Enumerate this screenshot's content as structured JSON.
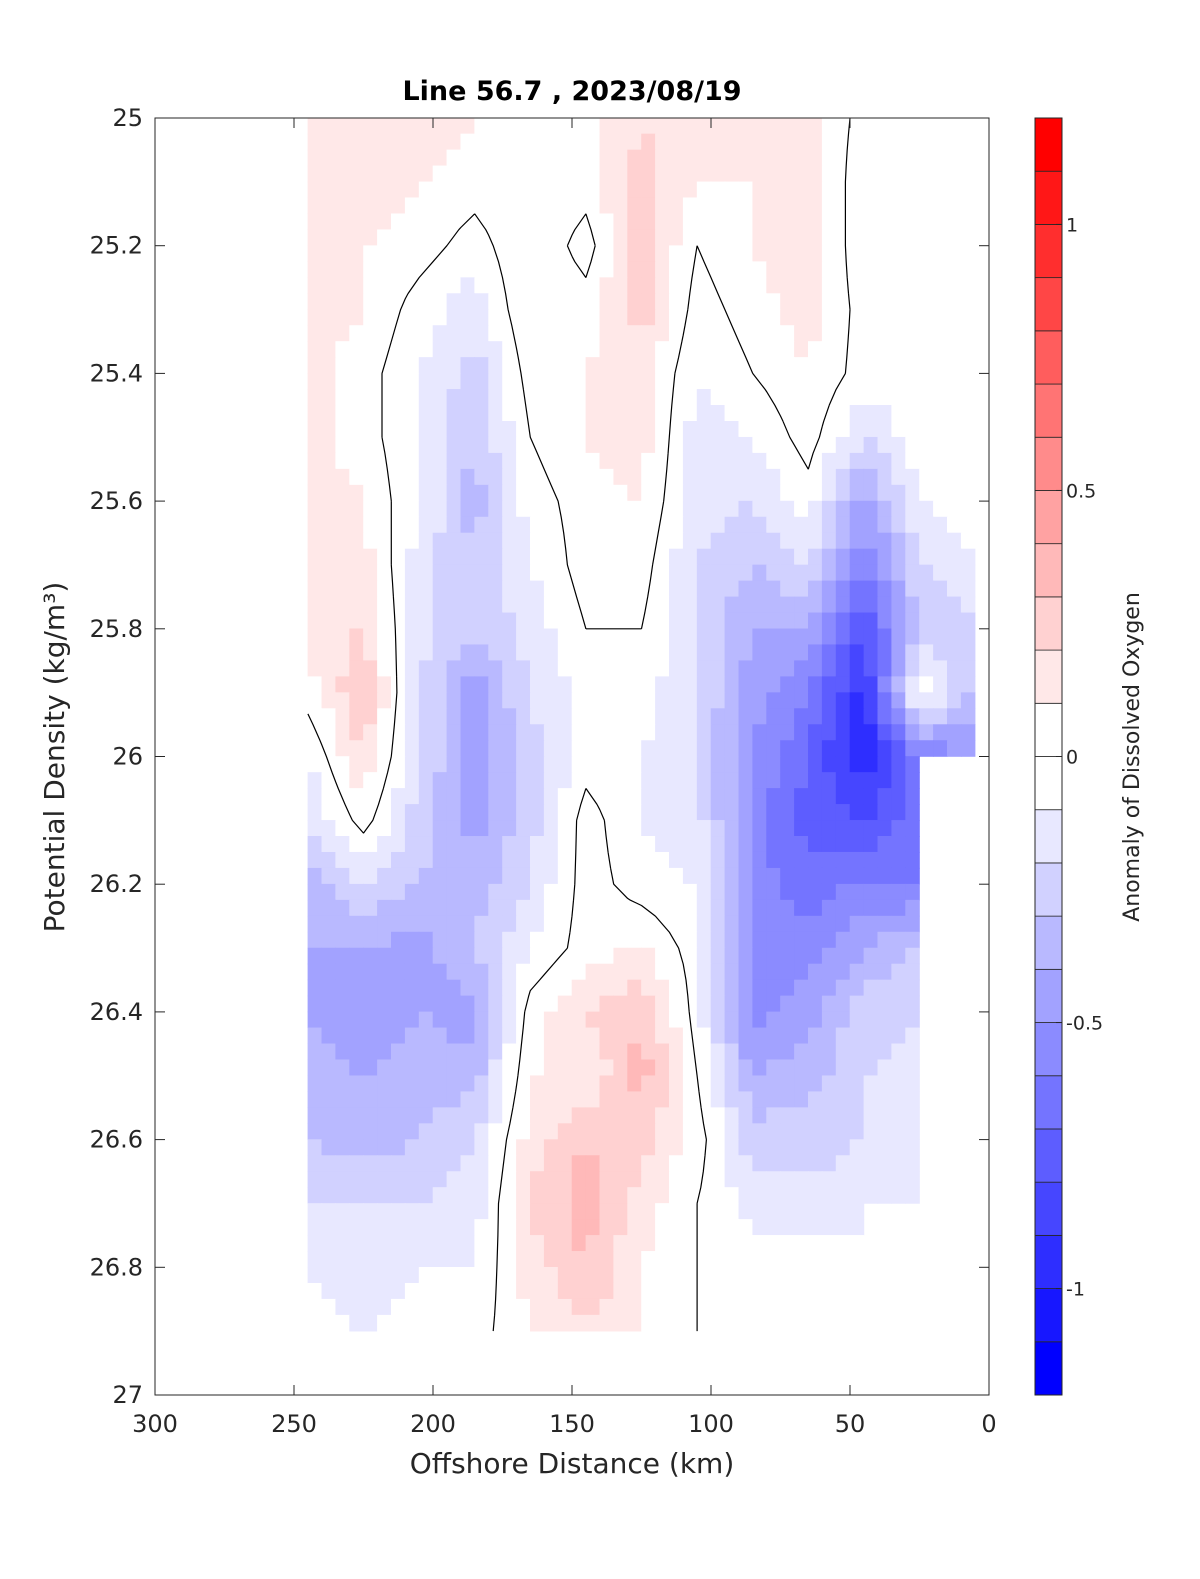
{
  "chart_data": {
    "type": "heatmap",
    "subtype": "filled-contour",
    "title": "Line 56.7 , 2023/08/19",
    "xlabel": "Offshore Distance (km)",
    "ylabel": "Potential Density (kg/m³)",
    "colorbar_label": "Anomaly of Dissolved Oxygen",
    "xlim": [
      300,
      0
    ],
    "ylim": [
      27,
      25
    ],
    "x_reversed": true,
    "y_reversed": true,
    "x_ticks": [
      "300",
      "250",
      "200",
      "150",
      "100",
      "50",
      "0"
    ],
    "y_ticks": [
      "25",
      "25.2",
      "25.4",
      "25.6",
      "25.8",
      "26",
      "26.2",
      "26.4",
      "26.6",
      "26.8",
      "27"
    ],
    "colorbar_range": [
      -1.2,
      1.2
    ],
    "colorbar_step": 0.1,
    "colorbar_ticks": [
      "1",
      "0.5",
      "0",
      "-0.5",
      "-1"
    ],
    "colormap": {
      "negative": "#0000ff",
      "zero": "#ffffff",
      "positive": "#ff0000"
    },
    "contour_level": 0,
    "grid": false,
    "x": [
      245,
      225,
      205,
      185,
      165,
      145,
      125,
      105,
      85,
      65,
      45,
      25,
      5
    ],
    "y": [
      25.0,
      25.1,
      25.2,
      25.3,
      25.4,
      25.5,
      25.6,
      25.7,
      25.8,
      25.9,
      26.0,
      26.1,
      26.2,
      26.3,
      26.4,
      26.5,
      26.6,
      26.7,
      26.8,
      26.9
    ],
    "z": [
      [
        0.2,
        0.2,
        0.15,
        0.1,
        0.1,
        0.05,
        0.2,
        0.1,
        0.1,
        0.15,
        -0.05,
        0,
        0
      ],
      [
        0.2,
        0.15,
        0.1,
        0.05,
        0.1,
        0.05,
        0.25,
        0.1,
        0.1,
        0.2,
        -0.1,
        0,
        0
      ],
      [
        0.2,
        0.1,
        0.05,
        -0.05,
        0.1,
        -0.05,
        0.25,
        0.0,
        0.1,
        0.2,
        -0.1,
        0,
        0
      ],
      [
        0.15,
        0.1,
        -0.05,
        -0.15,
        0.1,
        0.05,
        0.25,
        -0.05,
        0.05,
        0.15,
        -0.05,
        0,
        0
      ],
      [
        0.15,
        0.05,
        -0.1,
        -0.25,
        0.05,
        0.1,
        0.15,
        -0.1,
        0.0,
        0.1,
        -0.05,
        0,
        0
      ],
      [
        0.15,
        0.05,
        -0.1,
        -0.3,
        0.0,
        0.1,
        0.15,
        -0.15,
        -0.1,
        0.05,
        -0.2,
        -0.05,
        0
      ],
      [
        0.15,
        0.1,
        -0.1,
        -0.35,
        -0.05,
        0.05,
        0.1,
        -0.15,
        -0.2,
        -0.05,
        -0.45,
        -0.1,
        -0.05
      ],
      [
        0.15,
        0.15,
        -0.15,
        -0.3,
        -0.1,
        0.05,
        0.05,
        -0.2,
        -0.3,
        -0.2,
        -0.6,
        -0.2,
        -0.1
      ],
      [
        0.15,
        0.2,
        -0.15,
        -0.3,
        -0.15,
        0.0,
        0.0,
        -0.2,
        -0.4,
        -0.4,
        -0.8,
        -0.3,
        -0.2
      ],
      [
        0.05,
        0.3,
        -0.2,
        -0.45,
        -0.2,
        -0.05,
        -0.05,
        -0.2,
        -0.45,
        -0.6,
        -0.95,
        0.0,
        -0.35
      ],
      [
        -0.1,
        0.2,
        -0.2,
        -0.45,
        -0.25,
        -0.05,
        -0.1,
        -0.2,
        -0.5,
        -0.7,
        -1.0,
        -0.6,
        -0.5
      ],
      [
        -0.2,
        0.05,
        -0.25,
        -0.45,
        -0.25,
        0.05,
        -0.1,
        -0.15,
        -0.55,
        -0.75,
        -0.8,
        -0.65,
        null
      ],
      [
        -0.35,
        -0.2,
        -0.3,
        -0.35,
        -0.2,
        0.05,
        -0.05,
        -0.1,
        -0.55,
        -0.65,
        -0.6,
        -0.6,
        null
      ],
      [
        -0.4,
        -0.4,
        -0.45,
        -0.3,
        -0.1,
        0.05,
        0.1,
        -0.05,
        -0.55,
        -0.55,
        -0.4,
        -0.3,
        null
      ],
      [
        -0.4,
        -0.5,
        -0.4,
        -0.45,
        0.05,
        0.2,
        0.3,
        -0.05,
        -0.55,
        -0.45,
        -0.25,
        -0.2,
        null
      ],
      [
        -0.35,
        -0.4,
        -0.35,
        -0.35,
        0.1,
        0.1,
        0.35,
        0.0,
        -0.4,
        -0.35,
        -0.2,
        -0.15,
        null
      ],
      [
        -0.3,
        -0.35,
        -0.3,
        -0.2,
        0.15,
        0.3,
        0.25,
        0.05,
        -0.25,
        -0.25,
        -0.2,
        -0.1,
        null
      ],
      [
        -0.2,
        -0.2,
        -0.2,
        -0.15,
        0.2,
        0.35,
        0.15,
        0.0,
        -0.15,
        -0.15,
        -0.15,
        -0.1,
        null
      ],
      [
        -0.1,
        -0.15,
        -0.1,
        -0.1,
        0.15,
        0.3,
        0.1,
        0.0,
        -0.05,
        -0.05,
        -0.05,
        null,
        null
      ],
      [
        -0.05,
        -0.1,
        -0.05,
        -0.05,
        0.1,
        0.2,
        0.1,
        0.0,
        null,
        null,
        null,
        null,
        null
      ]
    ]
  }
}
